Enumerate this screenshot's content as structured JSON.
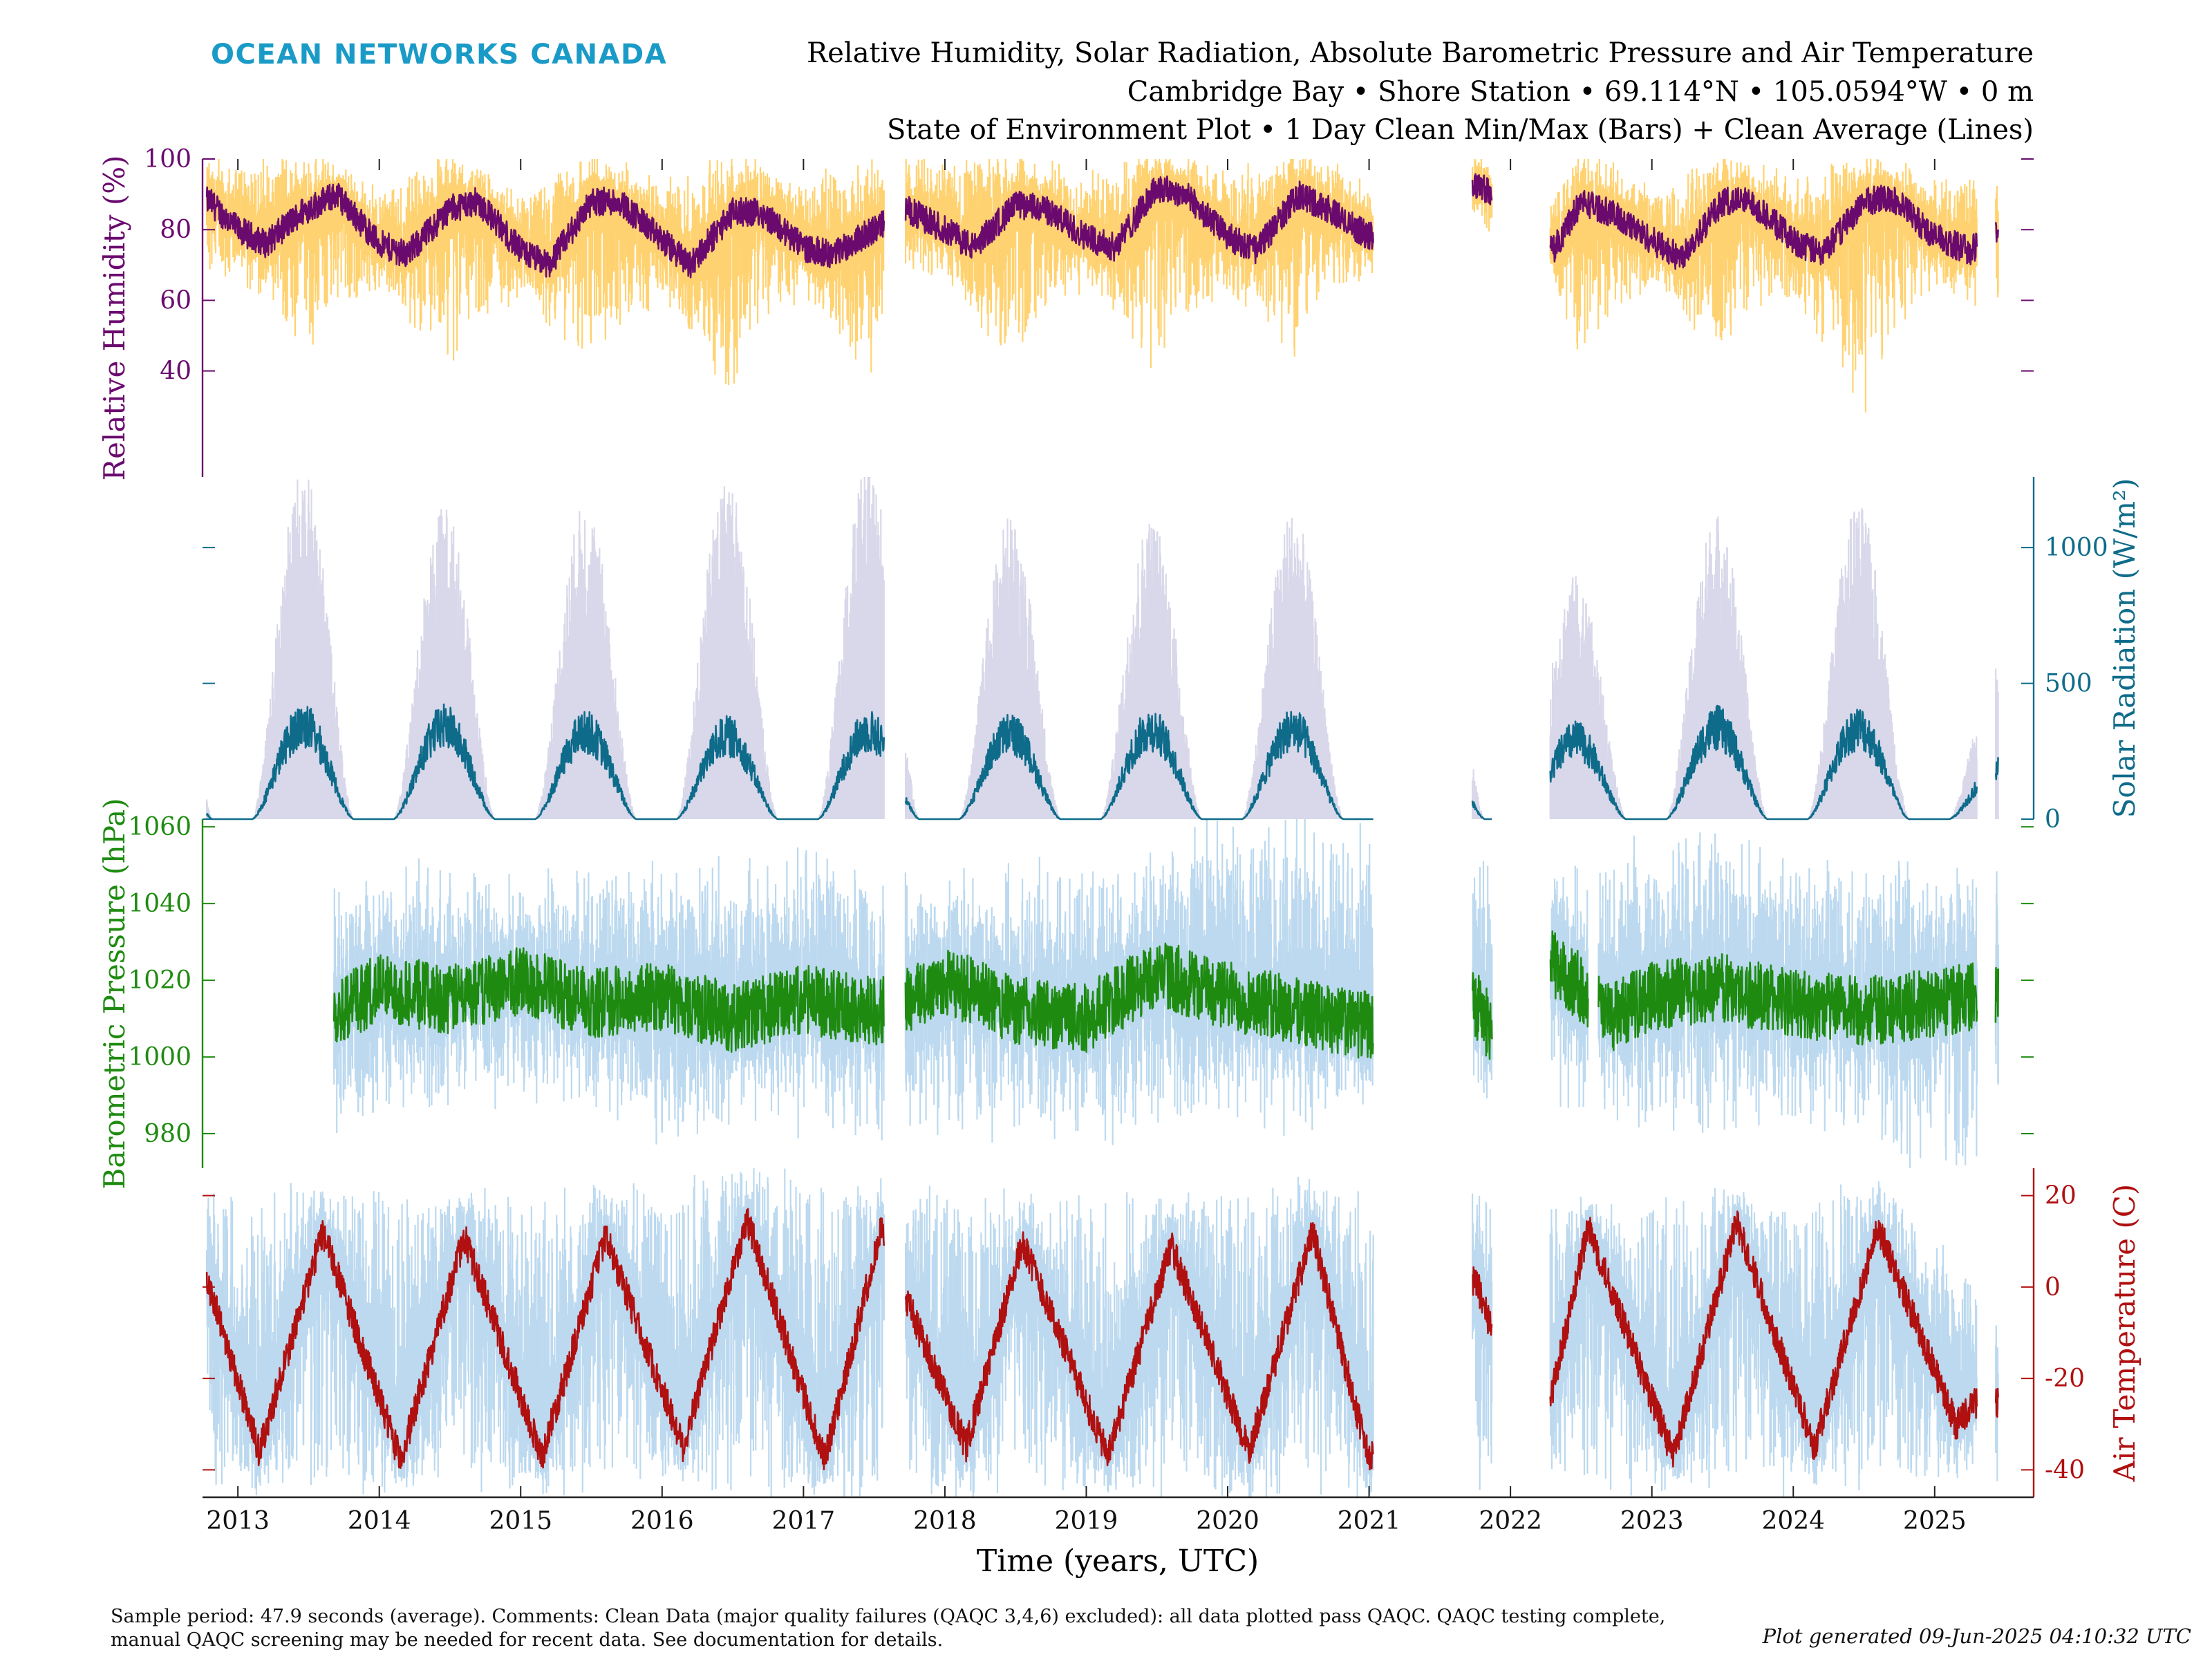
{
  "brand": "OCEAN NETWORKS CANADA",
  "colors": {
    "brand": "#1a9bc7",
    "humidity": "#6a0a6e",
    "humidity_band": "#ffd271",
    "solar": "#0e6b8a",
    "solar_band": "#d8d8ea",
    "pressure": "#1e8b10",
    "pressure_band": "#bcd9ef",
    "temperature": "#b01010",
    "temperature_band": "#bcd9ef"
  },
  "title_lines": [
    "Relative Humidity, Solar Radiation, Absolute Barometric Pressure and Air Temperature",
    "Cambridge Bay • Shore Station • 69.114°N • 105.0594°W • 0 m",
    "State of Environment Plot • 1 Day Clean Min/Max (Bars) + Clean Average (Lines)"
  ],
  "xlabel": "Time (years, UTC)",
  "footer": {
    "line1": "Sample period: 47.9 seconds (average). Comments: Clean Data (major quality failures (QAQC 3,4,6) excluded): all data plotted pass QAQC. QAQC testing complete,",
    "line2": "manual QAQC screening may be needed for recent data. See documentation for details.",
    "generated": "Plot generated 09-Jun-2025 04:10:32 UTC"
  },
  "chart_data": [
    {
      "id": "humidity",
      "type": "line",
      "ylabel": "Relative Humidity (%)",
      "axis_side": "left",
      "ylim": [
        10,
        100
      ],
      "yticks": [
        40,
        60,
        80,
        100
      ],
      "xlim": [
        2012.75,
        2025.7
      ],
      "xticks": [
        2013,
        2014,
        2015,
        2016,
        2017,
        2018,
        2019,
        2020,
        2021,
        2022,
        2023,
        2024,
        2025
      ],
      "gaps": [
        [
          2017.57,
          2017.72
        ],
        [
          2021.03,
          2021.73
        ],
        [
          2021.87,
          2022.28
        ],
        [
          2025.3,
          2025.43
        ]
      ],
      "series": [
        {
          "values_kind": "mean",
          "x": [
            2012.8,
            2013.0,
            2013.2,
            2013.45,
            2013.7,
            2014.0,
            2014.2,
            2014.5,
            2014.7,
            2015.0,
            2015.2,
            2015.5,
            2015.7,
            2016.0,
            2016.2,
            2016.5,
            2016.7,
            2017.0,
            2017.2,
            2017.5,
            2017.72,
            2018.0,
            2018.2,
            2018.5,
            2018.7,
            2019.0,
            2019.2,
            2019.5,
            2019.7,
            2020.0,
            2020.2,
            2020.5,
            2020.7,
            2021.0,
            2021.75,
            2021.85,
            2022.3,
            2022.5,
            2022.7,
            2023.0,
            2023.2,
            2023.5,
            2023.7,
            2024.0,
            2024.2,
            2024.5,
            2024.7,
            2025.0,
            2025.25,
            2025.45
          ],
          "values": [
            88,
            80,
            76,
            85,
            90,
            76,
            73,
            86,
            88,
            74,
            70,
            88,
            88,
            77,
            70,
            85,
            85,
            75,
            73,
            80,
            86,
            80,
            75,
            87,
            86,
            78,
            75,
            92,
            90,
            78,
            74,
            90,
            86,
            78,
            93,
            91,
            74,
            88,
            85,
            77,
            72,
            88,
            88,
            77,
            73,
            88,
            89,
            78,
            74,
            80
          ]
        },
        {
          "values_kind": "min",
          "x": [
            2012.8,
            2013.0,
            2013.5,
            2013.6,
            2014.0,
            2014.5,
            2014.6,
            2015.0,
            2015.5,
            2015.6,
            2016.0,
            2016.5,
            2016.55,
            2017.0,
            2017.5,
            2017.55,
            2017.72,
            2018.0,
            2018.5,
            2018.6,
            2019.0,
            2019.5,
            2019.6,
            2020.0,
            2020.5,
            2020.6,
            2021.0,
            2021.75,
            2022.3,
            2022.5,
            2022.6,
            2023.0,
            2023.5,
            2023.6,
            2024.0,
            2024.5,
            2024.6,
            2025.0,
            2025.3
          ],
          "values": [
            68,
            72,
            46,
            55,
            66,
            44,
            55,
            64,
            45,
            52,
            64,
            32,
            48,
            66,
            42,
            55,
            72,
            70,
            40,
            55,
            68,
            42,
            52,
            66,
            48,
            60,
            72,
            88,
            66,
            45,
            55,
            66,
            48,
            55,
            64,
            24,
            42,
            66,
            62
          ]
        },
        {
          "values_kind": "max",
          "x": [
            2012.8,
            2013.5,
            2014.0,
            2014.5,
            2015.0,
            2015.5,
            2016.0,
            2016.5,
            2017.0,
            2017.5,
            2017.72,
            2018.5,
            2019.0,
            2019.5,
            2020.0,
            2020.5,
            2021.0,
            2021.75,
            2022.3,
            2022.5,
            2023.0,
            2023.5,
            2024.0,
            2024.5,
            2025.0,
            2025.3
          ],
          "values": [
            97,
            99,
            88,
            99,
            86,
            99,
            90,
            99,
            92,
            98,
            97,
            99,
            92,
            100,
            92,
            100,
            90,
            97,
            90,
            99,
            90,
            99,
            90,
            100,
            90,
            92
          ]
        }
      ]
    },
    {
      "id": "solar",
      "type": "line",
      "ylabel": "Solar Radiation (W/m²)",
      "axis_side": "right",
      "ylim": [
        0,
        1260
      ],
      "yticks": [
        0,
        500,
        1000
      ],
      "xlim": [
        2012.75,
        2025.7
      ],
      "xticks": [
        2013,
        2014,
        2015,
        2016,
        2017,
        2018,
        2019,
        2020,
        2021,
        2022,
        2023,
        2024,
        2025
      ],
      "gaps": [
        [
          2017.57,
          2017.72
        ],
        [
          2021.03,
          2021.73
        ],
        [
          2021.87,
          2022.28
        ],
        [
          2025.3,
          2025.43
        ]
      ],
      "seasonal_peaks_years": [
        2013,
        2014,
        2015,
        2016,
        2017,
        2018,
        2019,
        2020,
        2023,
        2024,
        2025
      ],
      "series": [
        {
          "values_kind": "mean_summer_peak",
          "x": [
            2013.45,
            2014.45,
            2015.45,
            2016.45,
            2017.45,
            2018.45,
            2019.45,
            2020.45,
            2022.45,
            2023.45,
            2024.45,
            2025.3
          ],
          "values": [
            345,
            340,
            320,
            305,
            325,
            315,
            330,
            330,
            290,
            335,
            335,
            185
          ]
        },
        {
          "values_kind": "max_summer_peak",
          "x": [
            2013.45,
            2014.45,
            2015.45,
            2016.45,
            2017.45,
            2018.45,
            2019.45,
            2020.45,
            2022.45,
            2023.45,
            2024.45,
            2025.3
          ],
          "values": [
            1170,
            1060,
            1070,
            1150,
            1190,
            1020,
            1020,
            1040,
            820,
            1030,
            1060,
            520
          ]
        }
      ]
    },
    {
      "id": "pressure",
      "type": "line",
      "ylabel": "Barometric Pressure (hPa)",
      "axis_side": "left",
      "ylim": [
        971,
        1062
      ],
      "yticks": [
        980,
        1000,
        1020,
        1040,
        1060
      ],
      "xlim": [
        2012.75,
        2025.7
      ],
      "xticks": [
        2013,
        2014,
        2015,
        2016,
        2017,
        2018,
        2019,
        2020,
        2021,
        2022,
        2023,
        2024,
        2025
      ],
      "data_start": 2013.68,
      "gaps": [
        [
          2017.57,
          2017.72
        ],
        [
          2021.03,
          2021.73
        ],
        [
          2021.87,
          2022.28
        ],
        [
          2022.55,
          2022.62
        ],
        [
          2025.3,
          2025.43
        ]
      ],
      "series": [
        {
          "values_kind": "mean",
          "x": [
            2013.7,
            2014.0,
            2014.5,
            2015.0,
            2015.5,
            2016.0,
            2016.5,
            2017.0,
            2017.5,
            2017.72,
            2018.0,
            2018.5,
            2019.0,
            2019.5,
            2020.0,
            2020.5,
            2021.0,
            2021.75,
            2021.85,
            2022.3,
            2022.5,
            2022.7,
            2023.0,
            2023.5,
            2024.0,
            2024.5,
            2025.0,
            2025.3
          ],
          "values": [
            1012,
            1018,
            1015,
            1020,
            1014,
            1016,
            1010,
            1015,
            1012,
            1014,
            1020,
            1012,
            1010,
            1022,
            1016,
            1012,
            1008,
            1014,
            1008,
            1024,
            1018,
            1010,
            1016,
            1018,
            1014,
            1012,
            1014,
            1016
          ]
        },
        {
          "values_kind": "max",
          "x": [
            2013.9,
            2014.3,
            2015.1,
            2016.3,
            2016.95,
            2018.2,
            2019.3,
            2020.25,
            2022.3,
            2023.2,
            2024.0,
            2024.8
          ],
          "values": [
            1040,
            1042,
            1040,
            1045,
            1048,
            1040,
            1045,
            1060,
            1040,
            1052,
            1048,
            1044
          ]
        },
        {
          "values_kind": "min",
          "x": [
            2013.85,
            2014.6,
            2015.8,
            2016.0,
            2016.55,
            2017.1,
            2018.15,
            2018.9,
            2020.3,
            2022.4,
            2023.1,
            2024.1,
            2024.8
          ],
          "values": [
            988,
            993,
            990,
            978,
            990,
            988,
            986,
            985,
            988,
            996,
            987,
            988,
            978
          ]
        }
      ]
    },
    {
      "id": "temperature",
      "type": "line",
      "ylabel": "Air Temperature (C)",
      "axis_side": "right",
      "ylim": [
        -46,
        26
      ],
      "yticks": [
        -40,
        -20,
        0,
        20
      ],
      "xlim": [
        2012.75,
        2025.7
      ],
      "xticks": [
        2013,
        2014,
        2015,
        2016,
        2017,
        2018,
        2019,
        2020,
        2021,
        2022,
        2023,
        2024,
        2025
      ],
      "gaps": [
        [
          2017.57,
          2017.72
        ],
        [
          2021.03,
          2021.73
        ],
        [
          2021.87,
          2022.28
        ],
        [
          2025.3,
          2025.43
        ]
      ],
      "series": [
        {
          "values_kind": "mean",
          "x": [
            2012.8,
            2013.15,
            2013.6,
            2014.15,
            2014.6,
            2015.15,
            2015.6,
            2016.15,
            2016.6,
            2017.15,
            2017.55,
            2017.72,
            2018.15,
            2018.55,
            2019.15,
            2019.6,
            2020.15,
            2020.6,
            2021.0,
            2021.75,
            2021.85,
            2022.28,
            2022.55,
            2023.15,
            2023.6,
            2024.15,
            2024.6,
            2025.15,
            2025.3
          ],
          "values": [
            0,
            -36,
            12,
            -38,
            11,
            -37,
            11,
            -35,
            15,
            -38,
            13,
            -2,
            -35,
            10,
            -37,
            9,
            -36,
            12,
            -38,
            2,
            -8,
            -25,
            13,
            -37,
            14,
            -35,
            13,
            -30,
            -25
          ]
        },
        {
          "values_kind": "max",
          "x": [
            2013.6,
            2014.6,
            2015.6,
            2016.6,
            2017.55,
            2018.55,
            2019.6,
            2020.6,
            2022.55,
            2023.6,
            2024.6,
            2025.3
          ],
          "values": [
            20,
            18,
            18,
            24,
            20,
            17,
            17,
            20,
            17,
            18,
            20,
            0
          ]
        },
        {
          "values_kind": "min",
          "x": [
            2013.15,
            2014.15,
            2015.15,
            2016.15,
            2017.15,
            2018.15,
            2019.15,
            2020.15,
            2021.0,
            2023.15,
            2024.15,
            2025.15
          ],
          "values": [
            -42,
            -42,
            -41,
            -40,
            -44,
            -43,
            -42,
            -43,
            -42,
            -42,
            -41,
            -38
          ]
        }
      ]
    }
  ]
}
